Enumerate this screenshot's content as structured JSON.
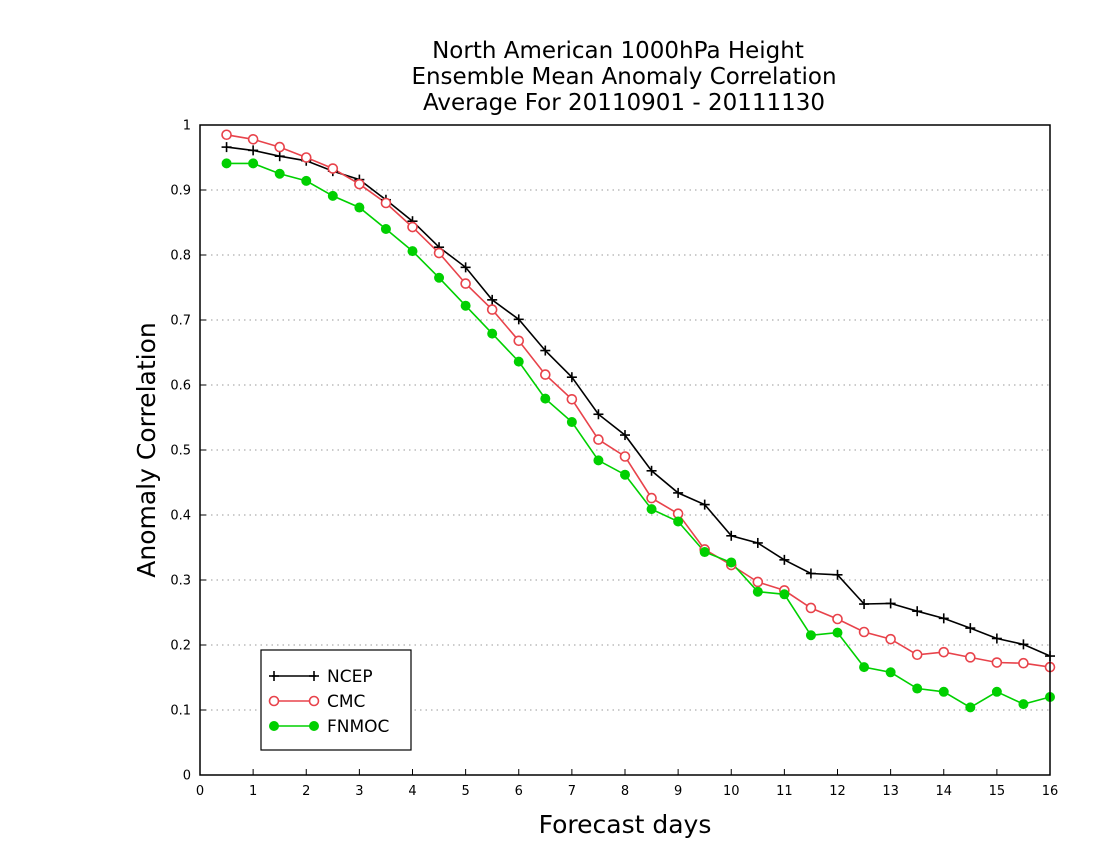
{
  "chart_data": {
    "type": "line",
    "title_lines": [
      "North American 1000hPa Height",
      "Ensemble Mean Anomaly Correlation",
      "Average For 20110901 - 20111130"
    ],
    "xlabel": "Forecast days",
    "ylabel": "Anomaly Correlation",
    "xlim": [
      0,
      16
    ],
    "ylim": [
      0,
      1
    ],
    "xticks": [
      0,
      1,
      2,
      3,
      4,
      5,
      6,
      7,
      8,
      9,
      10,
      11,
      12,
      13,
      14,
      15,
      16
    ],
    "yticks": [
      0,
      0.1,
      0.2,
      0.3,
      0.4,
      0.5,
      0.6,
      0.7,
      0.8,
      0.9,
      1
    ],
    "ytick_labels": [
      "0",
      "0.1",
      "0.2",
      "0.3",
      "0.4",
      "0.5",
      "0.6",
      "0.7",
      "0.8",
      "0.9",
      "1"
    ],
    "grid": "horizontal dotted",
    "legend_position": "bottom-left",
    "x": [
      0.5,
      1,
      1.5,
      2,
      2.5,
      3,
      3.5,
      4,
      4.5,
      5,
      5.5,
      6,
      6.5,
      7,
      7.5,
      8,
      8.5,
      9,
      9.5,
      10,
      10.5,
      11,
      11.5,
      12,
      12.5,
      13,
      13.5,
      14,
      14.5,
      15,
      15.5,
      16
    ],
    "series": [
      {
        "name": "NCEP",
        "color": "#000000",
        "marker": "plus",
        "values": [
          0.966,
          0.961,
          0.952,
          0.945,
          0.929,
          0.916,
          0.885,
          0.852,
          0.812,
          0.781,
          0.731,
          0.701,
          0.653,
          0.612,
          0.555,
          0.523,
          0.468,
          0.434,
          0.416,
          0.368,
          0.357,
          0.331,
          0.31,
          0.308,
          0.263,
          0.264,
          0.252,
          0.241,
          0.226,
          0.21,
          0.201,
          0.183
        ]
      },
      {
        "name": "CMC",
        "color": "#e8434b",
        "marker": "open-circle",
        "values": [
          0.985,
          0.978,
          0.966,
          0.95,
          0.933,
          0.909,
          0.88,
          0.843,
          0.803,
          0.756,
          0.716,
          0.668,
          0.616,
          0.578,
          0.516,
          0.49,
          0.426,
          0.402,
          0.347,
          0.323,
          0.297,
          0.284,
          0.257,
          0.24,
          0.22,
          0.209,
          0.185,
          0.189,
          0.181,
          0.173,
          0.172,
          0.166
        ]
      },
      {
        "name": "FNMOC",
        "color": "#00d000",
        "marker": "filled-circle",
        "values": [
          0.941,
          0.941,
          0.925,
          0.914,
          0.891,
          0.873,
          0.84,
          0.806,
          0.765,
          0.722,
          0.679,
          0.636,
          0.579,
          0.543,
          0.484,
          0.462,
          0.409,
          0.39,
          0.343,
          0.327,
          0.282,
          0.278,
          0.215,
          0.219,
          0.166,
          0.158,
          0.133,
          0.128,
          0.104,
          0.128,
          0.109,
          0.12
        ]
      }
    ]
  }
}
